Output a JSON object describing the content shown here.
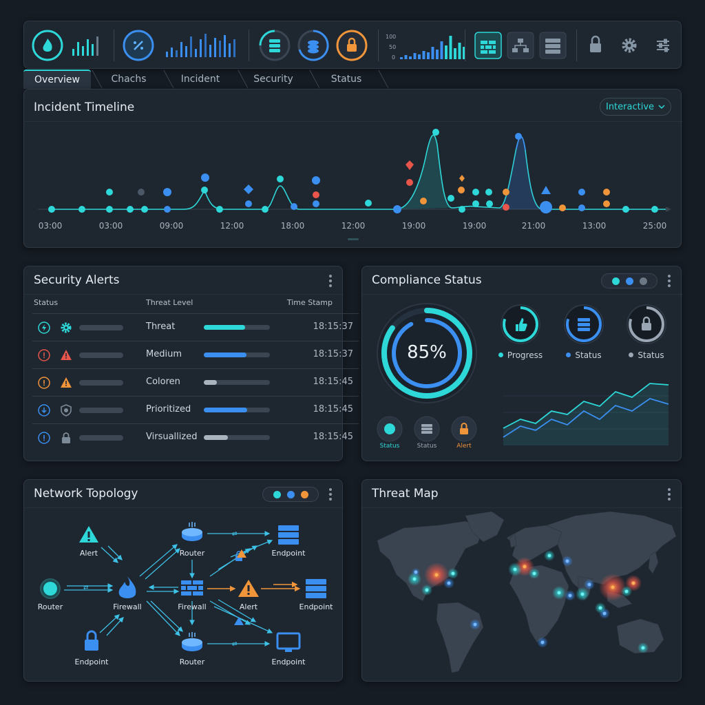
{
  "colors": {
    "accent_cyan": "#2ed8d8",
    "accent_blue": "#3b8ff0",
    "alert_orange": "#f0953a",
    "alert_red": "#e8554a",
    "bg": "#161c24",
    "panel": "#1e2630"
  },
  "toolbar": {
    "icons": [
      "flame-ring-icon",
      "equalizer-icon",
      "compass-ring-icon",
      "bar-spectrum-icon",
      "database-ring-icon",
      "stack-ring-icon",
      "lock-ring-icon",
      "mini-bar-chart",
      "firewall-icon",
      "network-icon",
      "server-icon",
      "lock-icon",
      "gear-icon",
      "sliders-icon"
    ],
    "mini_chart_ticks": [
      "100",
      "50",
      "0"
    ]
  },
  "tabs": [
    {
      "label": "Overview",
      "active": true
    },
    {
      "label": "Chachs",
      "active": false
    },
    {
      "label": "Incident",
      "active": false
    },
    {
      "label": "Security",
      "active": false
    },
    {
      "label": "Status",
      "active": false
    }
  ],
  "timeline": {
    "title": "Incident Timeline",
    "mode_label": "Interactive",
    "x_ticks": [
      "03:00",
      "03:00",
      "09:00",
      "12:00",
      "18:00",
      "12:00",
      "19:00",
      "19:00",
      "21:00",
      "13:00",
      "25:00"
    ]
  },
  "alerts": {
    "title": "Security Alerts",
    "columns": {
      "status": "Status",
      "threat": "Threat Level",
      "time": "Time Stamp"
    },
    "rows": [
      {
        "status_icon": "bolt-circle-icon",
        "type_icon": "gear-icon",
        "label": "Threat",
        "level": 0.62,
        "bar_color": "#2ed8d8",
        "time": "18:15:37"
      },
      {
        "status_icon": "exclamation-circle-icon",
        "type_icon": "warning-triangle-icon",
        "label": "Medium",
        "level": 0.65,
        "bar_color": "#3b8ff0",
        "time": "18:15:37"
      },
      {
        "status_icon": "exclamation-circle-icon",
        "type_icon": "warning-triangle-icon",
        "label": "Coloren",
        "level": 0.2,
        "bar_color": "#a9b4bf",
        "time": "18:15:45"
      },
      {
        "status_icon": "download-circle-icon",
        "type_icon": "shield-icon",
        "label": "Prioritized",
        "level": 0.66,
        "bar_color": "#3b8ff0",
        "time": "18:15:45"
      },
      {
        "status_icon": "info-circle-icon",
        "type_icon": "lock-icon",
        "label": "Virsuallized",
        "level": 0.36,
        "bar_color": "#a9b4bf",
        "time": "18:15:45"
      }
    ]
  },
  "compliance": {
    "title": "Compliance Status",
    "percent_label": "85%",
    "percent": 85,
    "rings": [
      {
        "icon": "thumbs-up-icon",
        "label": "Progress",
        "color": "#2ed8d8"
      },
      {
        "icon": "server-icon",
        "label": "Status",
        "color": "#3b8ff0"
      },
      {
        "icon": "lock-icon",
        "label": "Status",
        "color": "#9aa6b3"
      }
    ],
    "small_icons": [
      {
        "icon": "status-dot-icon",
        "label": "Status",
        "color": "#2ed8d8"
      },
      {
        "icon": "server-icon",
        "label": "Status",
        "color": "#9aa6b3"
      },
      {
        "icon": "lock-icon",
        "label": "Alert",
        "color": "#f0953a"
      }
    ]
  },
  "topology": {
    "title": "Network Topology",
    "nodes": [
      {
        "label": "Alert",
        "icon": "warning-triangle-icon"
      },
      {
        "label": "Router",
        "icon": "router-node-icon"
      },
      {
        "label": "Firewall",
        "icon": "flame-icon"
      },
      {
        "label": "Endpoint",
        "icon": "lock-icon"
      },
      {
        "label": "Router",
        "icon": "router-icon"
      },
      {
        "label": "Firewall",
        "icon": "brick-wall-icon"
      },
      {
        "label": "Router",
        "icon": "router-icon"
      },
      {
        "label": "Endpoint",
        "icon": "server-icon"
      },
      {
        "label": "Alert",
        "icon": "warning-triangle-icon"
      },
      {
        "label": "Endpoint",
        "icon": "server-icon"
      },
      {
        "label": "Endpoint",
        "icon": "monitor-icon"
      }
    ]
  },
  "threat_map": {
    "title": "Threat Map"
  }
}
